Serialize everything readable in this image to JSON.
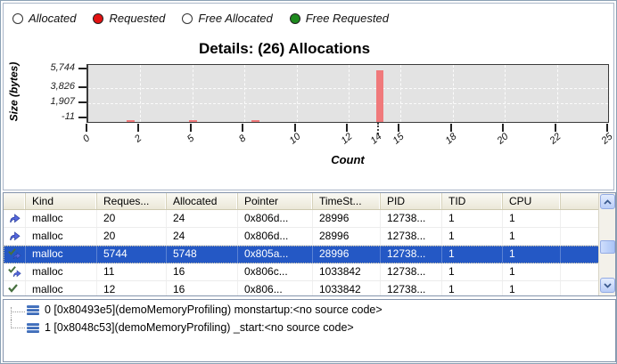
{
  "radio_group": {
    "options": [
      {
        "label": "Allocated",
        "selected": false,
        "color": "#ffffff"
      },
      {
        "label": "Requested",
        "selected": true,
        "color": "#e31212"
      },
      {
        "label": "Free Allocated",
        "selected": false,
        "color": "#ffffff"
      },
      {
        "label": "Free Requested",
        "selected": true,
        "color": "#1e8a1e"
      }
    ]
  },
  "chart_data": {
    "type": "bar",
    "title": "Details: (26) Allocations",
    "xlabel": "Count",
    "ylabel": "Size (bytes)",
    "xlim": [
      0,
      25
    ],
    "ylim": [
      -11,
      5744
    ],
    "grid": true,
    "legend": false,
    "tick_interval": 2.5,
    "x_ticks": [
      {
        "label": "0",
        "count": 0
      },
      {
        "label": "2",
        "count": 2.5
      },
      {
        "label": "5",
        "count": 5
      },
      {
        "label": "8",
        "count": 7.5
      },
      {
        "label": "10",
        "count": 10
      },
      {
        "label": "12",
        "count": 12.5
      },
      {
        "label": "15",
        "count": 15
      },
      {
        "label": "18",
        "count": 17.5
      },
      {
        "label": "20",
        "count": 20
      },
      {
        "label": "22",
        "count": 22.5
      },
      {
        "label": "25",
        "count": 25
      }
    ],
    "selected_tick": {
      "label": "14",
      "count": 14
    },
    "y_ticks": [
      {
        "label": "5,744",
        "value": 5744
      },
      {
        "label": "3,826",
        "value": 3826
      },
      {
        "label": "1,907",
        "value": 1907
      },
      {
        "label": "-11",
        "value": -11
      }
    ],
    "bar_color": "#f0797b",
    "bars": [
      {
        "count": 2,
        "size": 20,
        "selected": false
      },
      {
        "count": 5,
        "size": 20,
        "selected": false
      },
      {
        "count": 8,
        "size": 24,
        "selected": false
      },
      {
        "count": 14,
        "size": 5744,
        "selected": true
      }
    ]
  },
  "table": {
    "columns": [
      "",
      "Kind",
      "Reques...",
      "Allocated",
      "Pointer",
      "TimeSt...",
      "PID",
      "TID",
      "CPU"
    ],
    "rows": [
      {
        "icon": "arrow",
        "selected": false,
        "cells": [
          "malloc",
          "20",
          "24",
          "0x806d...",
          "28996",
          "12738...",
          "1",
          "1"
        ]
      },
      {
        "icon": "arrow",
        "selected": false,
        "cells": [
          "malloc",
          "20",
          "24",
          "0x806d...",
          "28996",
          "12738...",
          "1",
          "1"
        ]
      },
      {
        "icon": "check-arrow",
        "selected": true,
        "cells": [
          "malloc",
          "5744",
          "5748",
          "0x805a...",
          "28996",
          "12738...",
          "1",
          "1"
        ]
      },
      {
        "icon": "check-arrow",
        "selected": false,
        "cells": [
          "malloc",
          "11",
          "16",
          "0x806c...",
          "1033842",
          "12738...",
          "1",
          "1"
        ]
      },
      {
        "icon": "check",
        "selected": false,
        "cells": [
          "malloc",
          "12",
          "16",
          "0x806...",
          "1033842",
          "12738...",
          "1",
          "1"
        ]
      }
    ]
  },
  "stack_trace": {
    "items": [
      {
        "text": "0 [0x80493e5](demoMemoryProfiling) monstartup:<no source code>"
      },
      {
        "text": "1 [0x8048c53](demoMemoryProfiling) _start:<no source code>"
      }
    ]
  }
}
